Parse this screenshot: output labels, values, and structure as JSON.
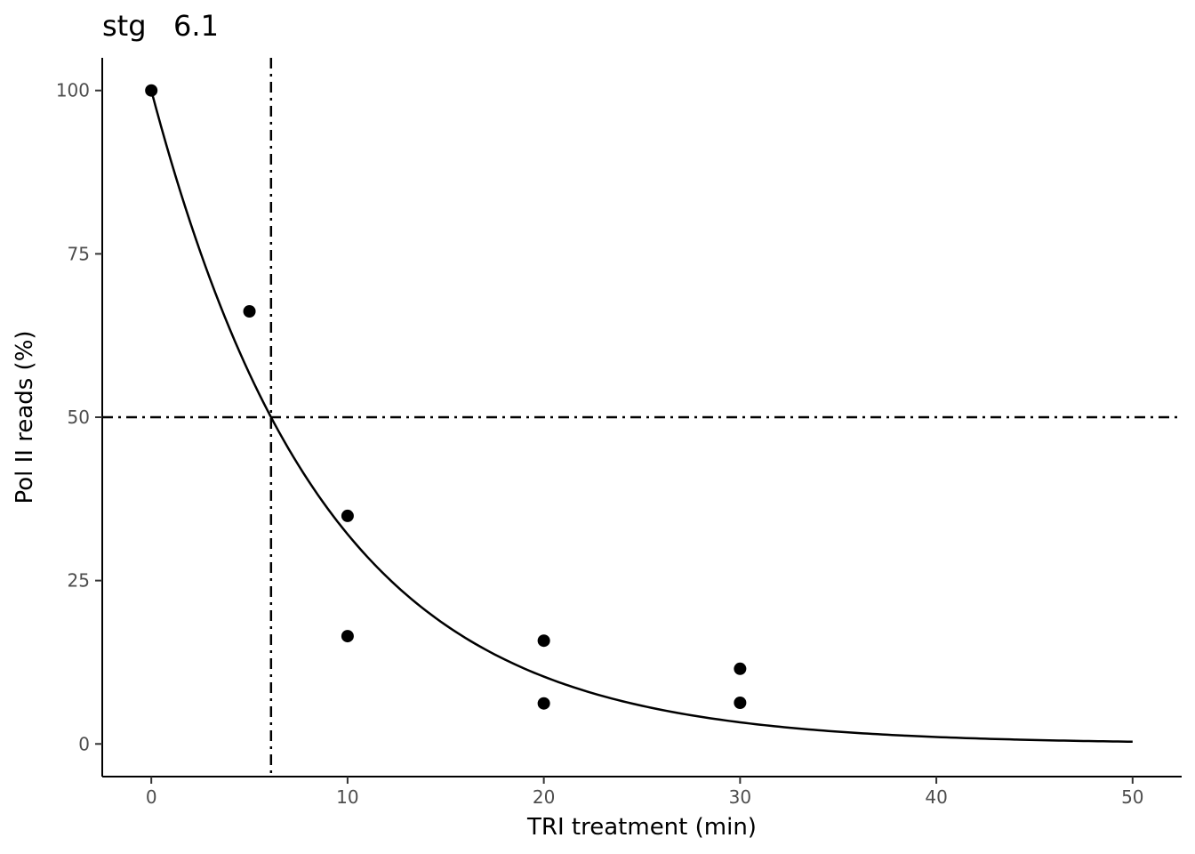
{
  "chart_data": {
    "type": "scatter",
    "title": "stg   6.1",
    "xlabel": "TRI treatment (min)",
    "ylabel": "Pol II reads (%)",
    "xlim": [
      -2.5,
      52.5
    ],
    "ylim": [
      -5,
      105
    ],
    "x_ticks": [
      0,
      10,
      20,
      30,
      40,
      50
    ],
    "y_ticks": [
      0,
      25,
      50,
      75,
      100
    ],
    "grid": false,
    "points": [
      {
        "x": 0,
        "y": 100
      },
      {
        "x": 5,
        "y": 66.2
      },
      {
        "x": 10,
        "y": 34.9
      },
      {
        "x": 10,
        "y": 16.5
      },
      {
        "x": 20,
        "y": 15.8
      },
      {
        "x": 20,
        "y": 6.2
      },
      {
        "x": 30,
        "y": 11.5
      },
      {
        "x": 30,
        "y": 6.3
      }
    ],
    "fit_curve": {
      "type": "exponential_decay",
      "formula": "100 * exp(-ln(2) * x / 6.1)",
      "half_life": 6.1,
      "x_range": [
        0,
        50
      ]
    },
    "reference_lines": [
      {
        "orientation": "vertical",
        "x": 6.1,
        "style": "dot-dash"
      },
      {
        "orientation": "horizontal",
        "y": 50,
        "style": "dot-dash"
      }
    ],
    "colors": {
      "points": "#000000",
      "curve": "#000000",
      "reference": "#000000"
    }
  }
}
